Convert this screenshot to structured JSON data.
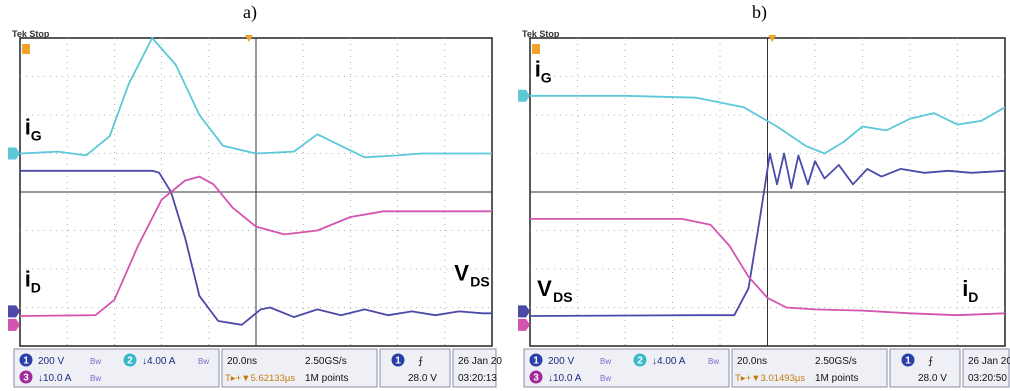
{
  "chart_data": [
    {
      "type": "line",
      "panel_label": "a)",
      "top_left_text": "Tek Stop",
      "trace_labels": {
        "ig_main": "i",
        "ig_sub": "G",
        "id_main": "i",
        "id_sub": "D",
        "vds_main": "V",
        "vds_sub": "DS"
      },
      "time_per_div": "20.0ns",
      "series": [
        {
          "name": "iG",
          "channel": "2",
          "color": "#5cc8d8",
          "x": [
            0,
            0.8,
            1.4,
            1.9,
            2.3,
            2.8,
            3.3,
            3.8,
            4.3,
            5.0,
            5.8,
            6.3,
            6.8,
            7.3,
            8.0,
            8.5,
            9.0,
            9.6,
            10
          ],
          "y": [
            5.0,
            5.05,
            4.95,
            5.45,
            6.8,
            8.0,
            7.3,
            6.0,
            5.2,
            5.0,
            5.05,
            5.5,
            5.2,
            4.9,
            4.95,
            5.0,
            5.0,
            5.0,
            5.0
          ]
        },
        {
          "name": "VDS",
          "channel": "1",
          "color": "#4b4aa8",
          "x": [
            0,
            2.8,
            2.95,
            3.2,
            3.5,
            3.8,
            4.2,
            4.7,
            5.1,
            5.3,
            5.8,
            6.3,
            6.8,
            7.3,
            7.8,
            8.3,
            8.8,
            9.3,
            9.8,
            10
          ],
          "y": [
            4.55,
            4.55,
            4.5,
            4.0,
            2.8,
            1.3,
            0.65,
            0.55,
            0.95,
            1.0,
            0.75,
            0.95,
            0.8,
            0.95,
            0.8,
            0.9,
            0.8,
            0.9,
            0.85,
            0.85
          ],
          "label_x": 9.2,
          "label_y": 1.7
        },
        {
          "name": "iD",
          "channel": "3",
          "color": "#d355b0",
          "x": [
            0,
            1.6,
            2.0,
            2.5,
            3.0,
            3.5,
            3.8,
            4.1,
            4.5,
            5.0,
            5.6,
            6.3,
            7.0,
            7.7,
            8.5,
            9.3,
            10
          ],
          "y": [
            0.78,
            0.8,
            1.2,
            2.6,
            3.8,
            4.3,
            4.4,
            4.2,
            3.6,
            3.1,
            2.9,
            3.0,
            3.35,
            3.5,
            3.5,
            3.5,
            3.5
          ],
          "label_x": 0.1,
          "label_y": 1.55
        }
      ],
      "ig_label_x": 0.1,
      "ig_label_y": 5.5,
      "trigger_x": 4.85,
      "xlim": [
        0,
        10
      ],
      "ylim": [
        0,
        8
      ],
      "grid": true,
      "readout": {
        "ch1_num": "1",
        "ch1_scale": "200 V",
        "ch1_bw": "Bw",
        "ch2_num": "2",
        "ch2_scale": "↓4.00 A",
        "ch2_bw": "Bw",
        "ch3_num": "3",
        "ch3_scale": "↓10.0 A",
        "ch3_bw": "Bw",
        "timebase": "20.0ns",
        "delay": "T▸+▼5.62133µs",
        "sample_rate": "2.50GS/s",
        "record_length": "1M points",
        "trig_ch": "1",
        "trig_slope": "⨍",
        "trig_level": "28.0 V",
        "date": "26 Jan  20",
        "time": "03:20:13"
      }
    },
    {
      "type": "line",
      "panel_label": "b)",
      "top_left_text": "Tek Stop",
      "trace_labels": {
        "ig_main": "i",
        "ig_sub": "G",
        "id_main": "i",
        "id_sub": "D",
        "vds_main": "V",
        "vds_sub": "DS"
      },
      "time_per_div": "20.0ns",
      "series": [
        {
          "name": "iG",
          "channel": "2",
          "color": "#5cc8d8",
          "x": [
            0,
            2.0,
            3.5,
            4.5,
            5.2,
            5.8,
            6.2,
            6.6,
            7.0,
            7.5,
            8.0,
            8.5,
            9.0,
            9.5,
            10
          ],
          "y": [
            6.5,
            6.5,
            6.45,
            6.2,
            5.7,
            5.2,
            5.0,
            5.3,
            5.7,
            5.6,
            5.9,
            6.05,
            5.75,
            5.85,
            6.2
          ],
          "label_x": 0.1,
          "label_y": 7.0
        },
        {
          "name": "VDS",
          "channel": "1",
          "color": "#4b4aa8",
          "x": [
            0,
            3.5,
            4.3,
            4.6,
            4.85,
            5.05,
            5.2,
            5.35,
            5.5,
            5.65,
            5.85,
            6.0,
            6.2,
            6.5,
            6.8,
            7.1,
            7.4,
            7.8,
            8.3,
            8.8,
            9.3,
            10
          ],
          "y": [
            0.78,
            0.8,
            0.8,
            1.5,
            3.4,
            5.0,
            4.2,
            5.0,
            4.1,
            4.95,
            4.2,
            4.8,
            4.35,
            4.7,
            4.2,
            4.6,
            4.4,
            4.6,
            4.5,
            4.55,
            4.5,
            4.55
          ],
          "label_x": 0.15,
          "label_y": 1.3
        },
        {
          "name": "iD",
          "channel": "3",
          "color": "#d355b0",
          "x": [
            0,
            2.0,
            3.2,
            3.8,
            4.2,
            4.6,
            5.0,
            5.4,
            6.0,
            7.0,
            8.0,
            9.0,
            10
          ],
          "y": [
            3.3,
            3.3,
            3.3,
            3.15,
            2.6,
            1.8,
            1.25,
            1.0,
            0.95,
            0.92,
            0.85,
            0.8,
            0.85
          ],
          "label_x": 9.1,
          "label_y": 1.3
        }
      ],
      "trigger_x": 5.1,
      "xlim": [
        0,
        10
      ],
      "ylim": [
        0,
        8
      ],
      "grid": true,
      "readout": {
        "ch1_num": "1",
        "ch1_scale": "200 V",
        "ch1_bw": "Bw",
        "ch2_num": "2",
        "ch2_scale": "↓4.00 A",
        "ch2_bw": "Bw",
        "ch3_num": "3",
        "ch3_scale": "↓10.0 A",
        "ch3_bw": "Bw",
        "timebase": "20.0ns",
        "delay": "T▸+▼3.01493µs",
        "sample_rate": "2.50GS/s",
        "record_length": "1M points",
        "trig_ch": "1",
        "trig_slope": "⨍",
        "trig_level": "28.0 V",
        "date": "26 Jan  20",
        "time": "03:20:50"
      }
    }
  ]
}
